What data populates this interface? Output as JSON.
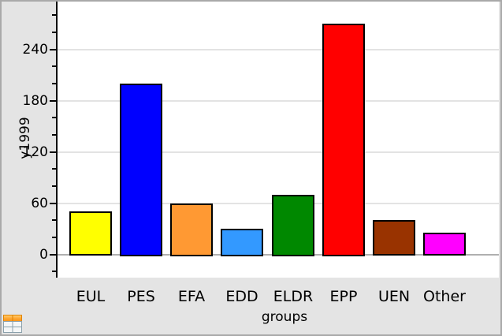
{
  "window": {
    "background": "#e4e4e4",
    "border_color": "#a9a9a9"
  },
  "icons": {
    "bottom_left": "spreadsheet-icon"
  },
  "chart_data": {
    "type": "bar",
    "categories": [
      "EUL",
      "PES",
      "EFA",
      "EDD",
      "ELDR",
      "EPP",
      "UEN",
      "Other"
    ],
    "values": [
      50,
      200,
      60,
      30,
      70,
      270,
      40,
      25
    ],
    "bar_colors": [
      "#ffff00",
      "#0000ff",
      "#ff9933",
      "#3399ff",
      "#008800",
      "#ff0000",
      "#993300",
      "#ff00ff"
    ],
    "bar_border_color": "#000000",
    "title": "",
    "xlabel": "groups",
    "ylabel": "y1999",
    "yticks": [
      0,
      60,
      120,
      180,
      240
    ],
    "minor_tick_step": 20,
    "ylim": [
      -27,
      296
    ],
    "grid": "horizontal-light-gray",
    "legend": "none",
    "plot_background": "#ffffff",
    "gridline_color": "#e3e3e3",
    "baseline_color": "#b0b0b0"
  }
}
